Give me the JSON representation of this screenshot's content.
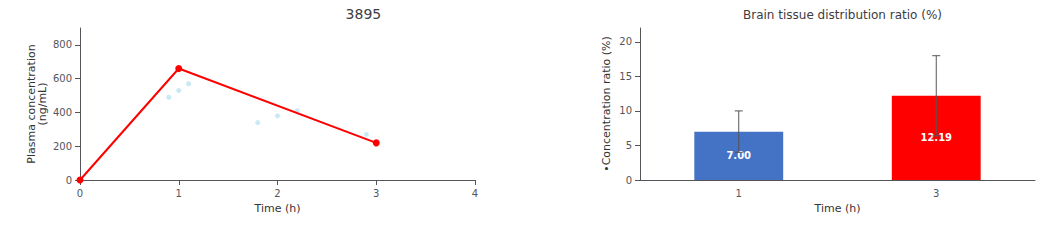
{
  "chart_data": [
    {
      "type": "line",
      "title": "3895",
      "xlabel": "Time (h)",
      "ylabel": "Plasma concentration\n(ng/mL)",
      "series": [
        {
          "type": "scatter",
          "color": "#87ceeb",
          "marker": "circle",
          "x": [
            0.9,
            1.0,
            1.1,
            1.8,
            2.0,
            2.2,
            2.9
          ],
          "values": [
            490,
            530,
            570,
            340,
            380,
            410,
            270
          ]
        },
        {
          "type": "line",
          "color": "#ff0000",
          "marker": "circle",
          "x": [
            0,
            1,
            3
          ],
          "values": [
            0,
            660,
            220
          ]
        }
      ],
      "xlim": [
        0,
        4
      ],
      "xticks": [
        0,
        1,
        2,
        3,
        4
      ],
      "ylim": [
        0,
        900
      ],
      "yticks": [
        0,
        200,
        400,
        600,
        800
      ],
      "grid": false
    },
    {
      "type": "bar",
      "title": "Brain tissue distribution ratio (%)",
      "xlabel": "Time (h)",
      "ylabel": "•Concentration ratio (%)",
      "categories": [
        "1",
        "3"
      ],
      "values": [
        7.0,
        12.19
      ],
      "value_labels": [
        "7.00",
        "12.19"
      ],
      "errors": [
        3.0,
        5.8
      ],
      "colors": [
        "#4472c4",
        "#ff0000"
      ],
      "ylim": [
        0,
        22
      ],
      "yticks": [
        0,
        5,
        10,
        15,
        20
      ],
      "data_labels": true,
      "grid": false
    }
  ]
}
